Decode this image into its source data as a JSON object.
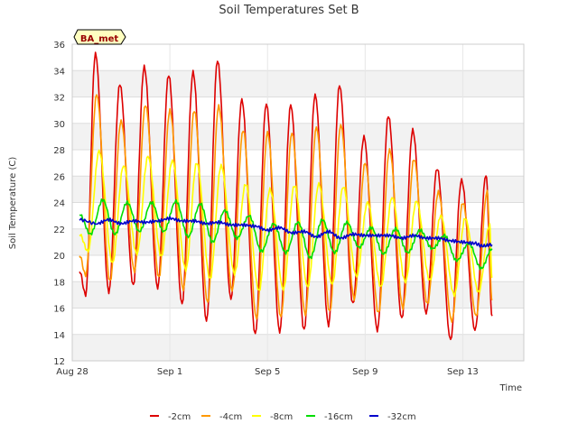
{
  "chart_data": {
    "type": "line",
    "title": "Soil Temperatures Set B",
    "xlabel": "Time",
    "ylabel": "Soil Temperature (C)",
    "site_label": "BA_met",
    "x_unit": "days since Aug 28",
    "xlim": [
      0,
      18.5
    ],
    "ylim": [
      12,
      36
    ],
    "y_ticks": [
      12,
      14,
      16,
      18,
      20,
      22,
      24,
      26,
      28,
      30,
      32,
      34,
      36
    ],
    "x_ticks": [
      {
        "day": 0,
        "label": "Aug 28"
      },
      {
        "day": 4,
        "label": "Sep 1"
      },
      {
        "day": 8,
        "label": "Sep 5"
      },
      {
        "day": 12,
        "label": "Sep 9"
      },
      {
        "day": 16,
        "label": "Sep 13"
      }
    ],
    "grid": true,
    "legend_position": "bottom",
    "series": [
      {
        "name": "-2cm",
        "color": "#dd0000",
        "points": [
          [
            0.3,
            18.8
          ],
          [
            0.55,
            17.0
          ],
          [
            0.95,
            35.3
          ],
          [
            1.5,
            17.2
          ],
          [
            1.95,
            33.0
          ],
          [
            2.5,
            17.7
          ],
          [
            2.95,
            34.3
          ],
          [
            3.5,
            17.5
          ],
          [
            3.95,
            33.7
          ],
          [
            4.5,
            16.3
          ],
          [
            4.95,
            33.9
          ],
          [
            5.5,
            15.0
          ],
          [
            5.95,
            34.8
          ],
          [
            6.5,
            16.7
          ],
          [
            6.95,
            31.8
          ],
          [
            7.5,
            14.0
          ],
          [
            7.95,
            31.5
          ],
          [
            8.5,
            14.2
          ],
          [
            8.95,
            31.4
          ],
          [
            9.5,
            14.3
          ],
          [
            9.95,
            32.2
          ],
          [
            10.5,
            14.7
          ],
          [
            10.95,
            32.9
          ],
          [
            11.5,
            16.3
          ],
          [
            11.95,
            29.0
          ],
          [
            12.5,
            14.3
          ],
          [
            12.95,
            30.6
          ],
          [
            13.5,
            15.2
          ],
          [
            13.95,
            29.5
          ],
          [
            14.5,
            15.6
          ],
          [
            14.95,
            26.6
          ],
          [
            15.5,
            13.6
          ],
          [
            15.95,
            25.7
          ],
          [
            16.5,
            14.3
          ],
          [
            16.95,
            26.1
          ],
          [
            17.2,
            15.4
          ]
        ]
      },
      {
        "name": "-4cm",
        "color": "#ff9900",
        "points": [
          [
            0.3,
            20.0
          ],
          [
            0.55,
            18.5
          ],
          [
            1.0,
            32.2
          ],
          [
            1.55,
            18.0
          ],
          [
            2.0,
            30.2
          ],
          [
            2.55,
            18.8
          ],
          [
            3.0,
            31.4
          ],
          [
            3.55,
            18.3
          ],
          [
            4.0,
            31.0
          ],
          [
            4.55,
            17.4
          ],
          [
            5.0,
            31.0
          ],
          [
            5.55,
            16.4
          ],
          [
            6.0,
            31.3
          ],
          [
            6.55,
            17.3
          ],
          [
            7.0,
            29.5
          ],
          [
            7.55,
            15.2
          ],
          [
            8.0,
            29.3
          ],
          [
            8.55,
            15.3
          ],
          [
            9.0,
            29.3
          ],
          [
            9.55,
            15.5
          ],
          [
            10.0,
            29.7
          ],
          [
            10.55,
            15.7
          ],
          [
            11.0,
            29.9
          ],
          [
            11.55,
            16.7
          ],
          [
            12.0,
            27.0
          ],
          [
            12.55,
            15.6
          ],
          [
            13.0,
            28.0
          ],
          [
            13.55,
            16.0
          ],
          [
            14.0,
            27.3
          ],
          [
            14.55,
            16.3
          ],
          [
            15.0,
            24.8
          ],
          [
            15.55,
            15.0
          ],
          [
            16.0,
            24.0
          ],
          [
            16.55,
            15.4
          ],
          [
            17.0,
            24.8
          ],
          [
            17.2,
            16.6
          ]
        ]
      },
      {
        "name": "-8cm",
        "color": "#ffff00",
        "points": [
          [
            0.3,
            21.6
          ],
          [
            0.65,
            20.3
          ],
          [
            1.1,
            27.9
          ],
          [
            1.65,
            19.4
          ],
          [
            2.1,
            26.8
          ],
          [
            2.65,
            20.1
          ],
          [
            3.1,
            27.5
          ],
          [
            3.65,
            19.9
          ],
          [
            4.1,
            27.2
          ],
          [
            4.65,
            18.9
          ],
          [
            5.1,
            27.0
          ],
          [
            5.65,
            18.2
          ],
          [
            6.1,
            26.8
          ],
          [
            6.65,
            18.6
          ],
          [
            7.1,
            25.4
          ],
          [
            7.65,
            17.3
          ],
          [
            8.1,
            25.0
          ],
          [
            8.65,
            17.4
          ],
          [
            9.1,
            25.3
          ],
          [
            9.65,
            17.6
          ],
          [
            10.1,
            25.4
          ],
          [
            10.65,
            17.8
          ],
          [
            11.1,
            25.2
          ],
          [
            11.65,
            18.4
          ],
          [
            12.1,
            24.0
          ],
          [
            12.65,
            17.6
          ],
          [
            13.1,
            24.4
          ],
          [
            13.65,
            18.0
          ],
          [
            14.1,
            24.1
          ],
          [
            14.65,
            18.1
          ],
          [
            15.1,
            23.0
          ],
          [
            15.65,
            17.0
          ],
          [
            16.1,
            22.8
          ],
          [
            16.65,
            17.2
          ],
          [
            17.1,
            22.3
          ],
          [
            17.2,
            18.3
          ]
        ]
      },
      {
        "name": "-16cm",
        "color": "#00dd00",
        "points": [
          [
            0.3,
            23.1
          ],
          [
            0.75,
            21.6
          ],
          [
            1.25,
            24.2
          ],
          [
            1.75,
            21.6
          ],
          [
            2.25,
            24.0
          ],
          [
            2.75,
            21.8
          ],
          [
            3.25,
            24.0
          ],
          [
            3.75,
            21.8
          ],
          [
            4.25,
            24.1
          ],
          [
            4.75,
            21.4
          ],
          [
            5.25,
            23.9
          ],
          [
            5.75,
            21.0
          ],
          [
            6.25,
            23.4
          ],
          [
            6.75,
            21.3
          ],
          [
            7.25,
            23.0
          ],
          [
            7.75,
            20.3
          ],
          [
            8.25,
            22.4
          ],
          [
            8.75,
            20.2
          ],
          [
            9.25,
            22.5
          ],
          [
            9.75,
            19.8
          ],
          [
            10.25,
            22.7
          ],
          [
            10.75,
            20.2
          ],
          [
            11.25,
            22.5
          ],
          [
            11.75,
            20.6
          ],
          [
            12.25,
            22.1
          ],
          [
            12.75,
            20.1
          ],
          [
            13.25,
            22.0
          ],
          [
            13.75,
            20.2
          ],
          [
            14.25,
            21.9
          ],
          [
            14.75,
            20.5
          ],
          [
            15.25,
            21.5
          ],
          [
            15.75,
            19.6
          ],
          [
            16.25,
            20.9
          ],
          [
            16.75,
            19.0
          ],
          [
            17.2,
            20.5
          ]
        ]
      },
      {
        "name": "-32cm",
        "color": "#0000cc",
        "points": [
          [
            0.3,
            22.7
          ],
          [
            1.0,
            22.4
          ],
          [
            1.5,
            22.7
          ],
          [
            2.0,
            22.4
          ],
          [
            2.5,
            22.6
          ],
          [
            3.0,
            22.5
          ],
          [
            3.5,
            22.6
          ],
          [
            4.0,
            22.8
          ],
          [
            4.5,
            22.6
          ],
          [
            5.0,
            22.6
          ],
          [
            5.5,
            22.4
          ],
          [
            6.0,
            22.5
          ],
          [
            6.5,
            22.3
          ],
          [
            7.0,
            22.3
          ],
          [
            7.5,
            22.2
          ],
          [
            8.0,
            21.9
          ],
          [
            8.5,
            22.1
          ],
          [
            9.0,
            21.7
          ],
          [
            9.5,
            21.8
          ],
          [
            10.0,
            21.4
          ],
          [
            10.5,
            21.8
          ],
          [
            11.0,
            21.3
          ],
          [
            11.5,
            21.6
          ],
          [
            12.0,
            21.5
          ],
          [
            12.5,
            21.5
          ],
          [
            13.0,
            21.5
          ],
          [
            13.5,
            21.3
          ],
          [
            14.0,
            21.5
          ],
          [
            14.5,
            21.3
          ],
          [
            15.0,
            21.3
          ],
          [
            15.5,
            21.1
          ],
          [
            16.0,
            21.0
          ],
          [
            16.5,
            20.9
          ],
          [
            16.8,
            20.7
          ],
          [
            17.2,
            20.8
          ]
        ]
      }
    ]
  }
}
